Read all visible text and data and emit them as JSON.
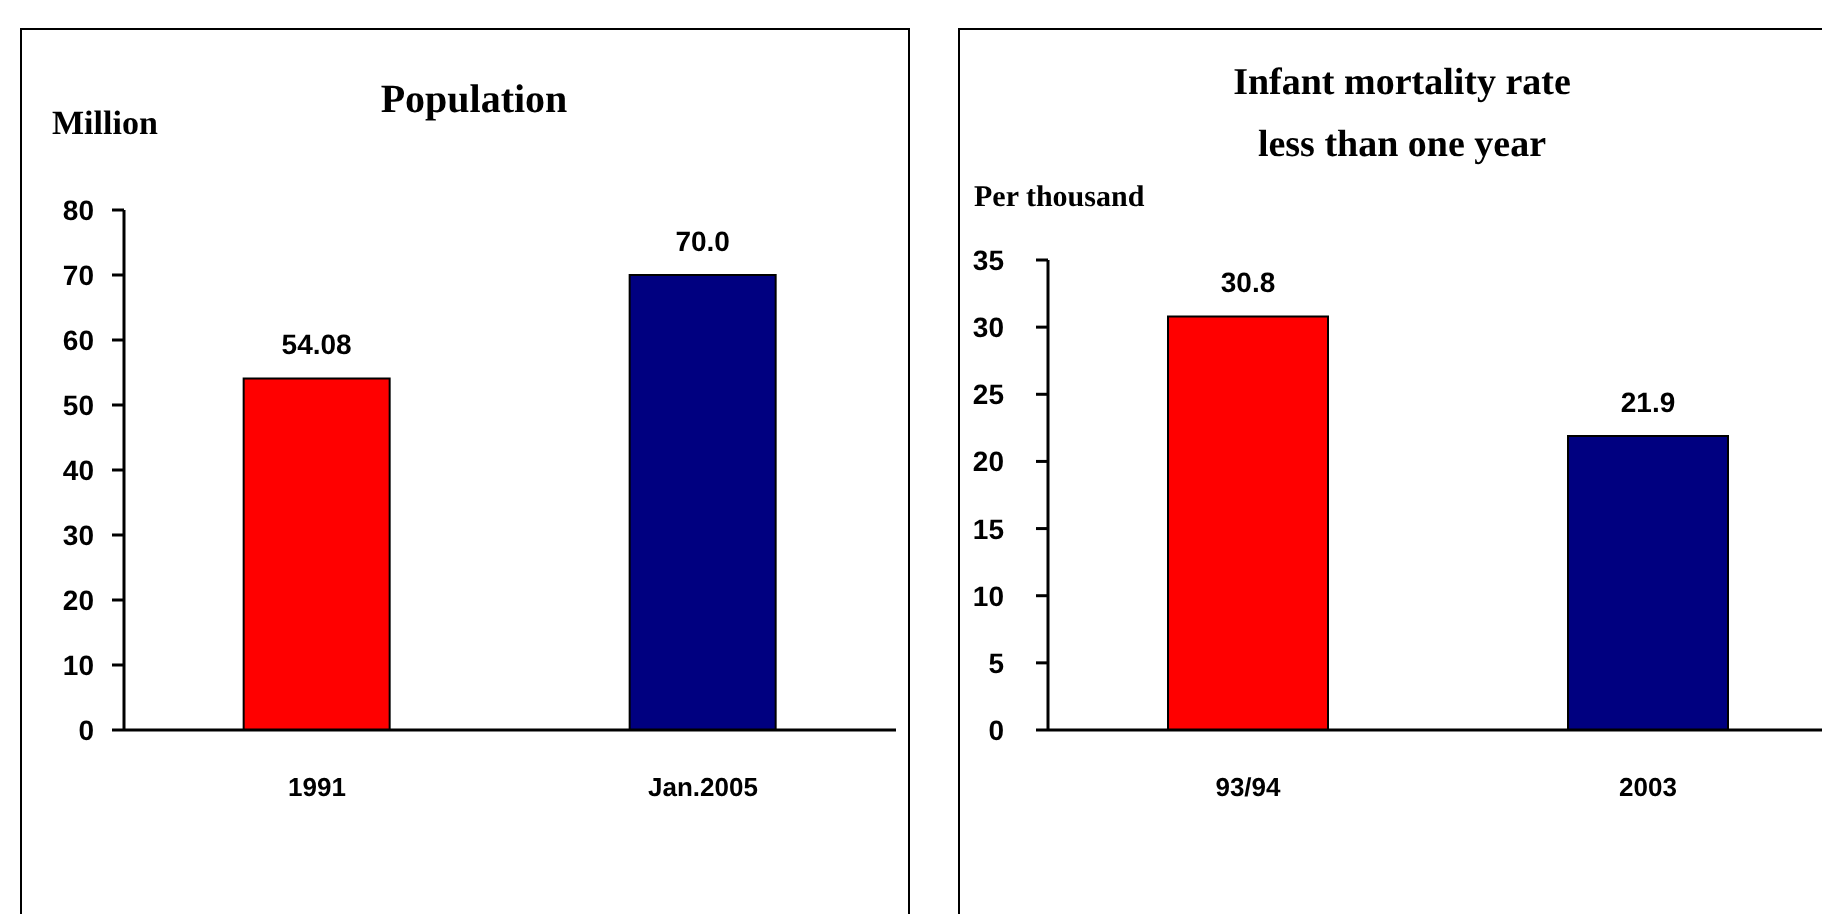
{
  "chart_data": [
    {
      "type": "bar",
      "title": "Population",
      "ylabel": "Million",
      "categories": [
        "1991",
        "Jan.2005"
      ],
      "values": [
        54.08,
        70.0
      ],
      "colors": [
        "#ff0000",
        "#000080"
      ],
      "value_labels": [
        "54.08",
        "70.0"
      ],
      "ylim": [
        0,
        80
      ],
      "yticks": [
        0,
        10,
        20,
        30,
        40,
        50,
        60,
        70,
        80
      ]
    },
    {
      "type": "bar",
      "title": "Infant mortality rate\nless than one year",
      "ylabel": "Per thousand",
      "categories": [
        "93/94",
        "2003"
      ],
      "values": [
        30.8,
        21.9
      ],
      "colors": [
        "#ff0000",
        "#000080"
      ],
      "data_labels": true,
      "ylim": [
        0,
        35
      ],
      "yticks": [
        0,
        5,
        10,
        15,
        20,
        25,
        30,
        35
      ]
    }
  ]
}
